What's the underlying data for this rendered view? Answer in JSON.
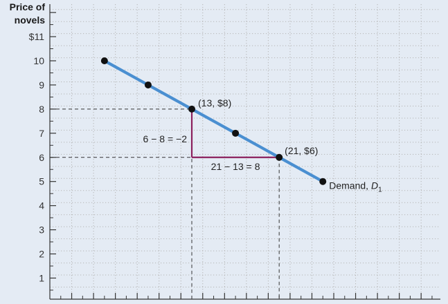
{
  "chart_data": {
    "type": "line",
    "ylabel_lines": [
      "Price of",
      "novels"
    ],
    "ylim": [
      0,
      12
    ],
    "ytick_labels": [
      {
        "value": 11,
        "label": "$11"
      },
      {
        "value": 10,
        "label": "10"
      },
      {
        "value": 9,
        "label": "9"
      },
      {
        "value": 8,
        "label": "8"
      },
      {
        "value": 7,
        "label": "7"
      },
      {
        "value": 6,
        "label": "6"
      },
      {
        "value": 5,
        "label": "5"
      },
      {
        "value": 4,
        "label": "4"
      },
      {
        "value": 3,
        "label": "3"
      },
      {
        "value": 2,
        "label": "2"
      },
      {
        "value": 1,
        "label": "1"
      }
    ],
    "xlim": [
      0,
      30
    ],
    "grid": true,
    "series": [
      {
        "name": "Demand, D1",
        "color": "#4a8fd1",
        "points": [
          {
            "x": 5,
            "y": 10
          },
          {
            "x": 9,
            "y": 9
          },
          {
            "x": 13,
            "y": 8
          },
          {
            "x": 17,
            "y": 7
          },
          {
            "x": 21,
            "y": 6
          },
          {
            "x": 25,
            "y": 5
          }
        ]
      }
    ],
    "point_labels": [
      {
        "x": 13,
        "y": 8,
        "text": "(13, $8)"
      },
      {
        "x": 21,
        "y": 6,
        "text": "(21, $6)"
      }
    ],
    "annotations": {
      "rise": "6 − 8 = −2",
      "run": "21 − 13 = 8",
      "demand_label": "Demand, ",
      "demand_symbol": "D",
      "demand_subscript": "1"
    },
    "reference_lines": [
      {
        "x": 13,
        "y": 8
      },
      {
        "x": 21,
        "y": 6
      }
    ],
    "colors": {
      "line": "#4a8fd1",
      "point": "#111111",
      "triangle": "#8b1f5c",
      "grid": "#b5b5b5",
      "background": "#e4ebf4"
    }
  }
}
